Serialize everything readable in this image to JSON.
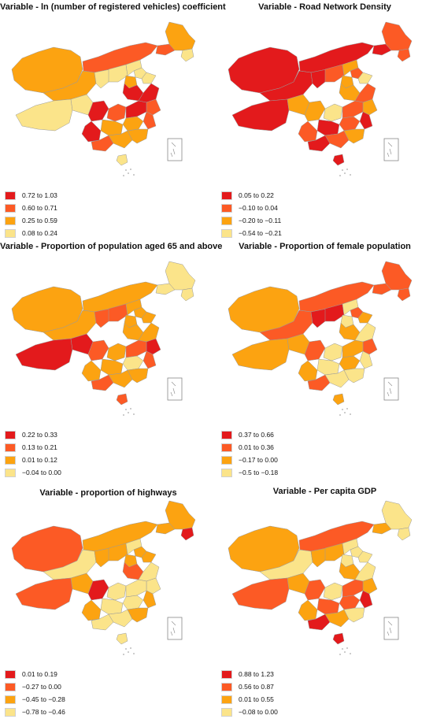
{
  "panels": [
    {
      "title": "Variable - ln (number of registered vehicles) coefficient",
      "legend": [
        "0.72 to 1.03",
        "0.60 to 0.71",
        "0.25 to 0.59",
        "0.08 to 0.24"
      ],
      "region_classes": [
        2,
        1,
        1,
        2,
        3,
        2,
        3,
        3,
        3,
        3,
        3,
        2,
        3,
        3,
        0,
        1,
        0,
        0,
        1,
        0,
        1,
        2,
        2,
        0,
        1,
        2,
        2,
        3
      ]
    },
    {
      "title": "Variable - Road Network Density",
      "legend": [
        "0.05 to 0.22",
        "−0.10 to 0.04",
        "−0.20 to −0.11",
        "−0.54 to −0.21"
      ],
      "region_classes": [
        0,
        0,
        0,
        1,
        1,
        0,
        0,
        1,
        2,
        1,
        3,
        2,
        0,
        2,
        2,
        3,
        2,
        1,
        2,
        1,
        0,
        1,
        0,
        1,
        0,
        1,
        2,
        0
      ]
    },
    {
      "title": "Variable - Proportion of population aged 65 and above",
      "legend": [
        "0.22 to 0.33",
        "0.13 to 0.21",
        "0.01 to 0.12",
        "−0.04 to 0.00"
      ],
      "region_classes": [
        2,
        2,
        3,
        3,
        3,
        2,
        1,
        1,
        2,
        2,
        2,
        2,
        0,
        0,
        1,
        2,
        2,
        2,
        0,
        1,
        1,
        3,
        2,
        2,
        1,
        2,
        2,
        1
      ]
    },
    {
      "title": "Variable - Proportion of female population",
      "legend": [
        "0.37 to 0.66",
        "0.01 to 0.36",
        "−0.17 to 0.00",
        "−0.5 to −0.18"
      ],
      "region_classes": [
        2,
        1,
        1,
        1,
        1,
        1,
        0,
        0,
        3,
        1,
        2,
        3,
        2,
        2,
        1,
        3,
        2,
        3,
        1,
        2,
        3,
        2,
        3,
        2,
        1,
        3,
        3,
        2
      ]
    },
    {
      "title": "Variable - proportion of highways",
      "legend": [
        "0.01 to 0.19",
        "−0.27 to 0.00",
        "−0.45 to −0.28",
        "−0.78 to −0.46"
      ],
      "region_classes": [
        1,
        2,
        2,
        2,
        0,
        3,
        2,
        2,
        3,
        2,
        2,
        2,
        1,
        2,
        0,
        3,
        1,
        3,
        3,
        3,
        2,
        3,
        3,
        2,
        3,
        3,
        2,
        3
      ]
    },
    {
      "title": "Variable - Per capita GDP",
      "legend": [
        "0.88 to 1.23",
        "0.56 to 0.87",
        "0.01 to 0.55",
        "−0.08 to 0.00"
      ],
      "region_classes": [
        2,
        1,
        2,
        3,
        3,
        3,
        2,
        2,
        3,
        3,
        3,
        3,
        1,
        2,
        1,
        3,
        2,
        3,
        2,
        1,
        0,
        1,
        1,
        2,
        0,
        2,
        3,
        0
      ]
    }
  ],
  "colors": [
    "#e31a1c",
    "#fc5a25",
    "#fca311",
    "#fbe48a"
  ],
  "border_color": "#9a9a9a",
  "inset_color": "#888888"
}
